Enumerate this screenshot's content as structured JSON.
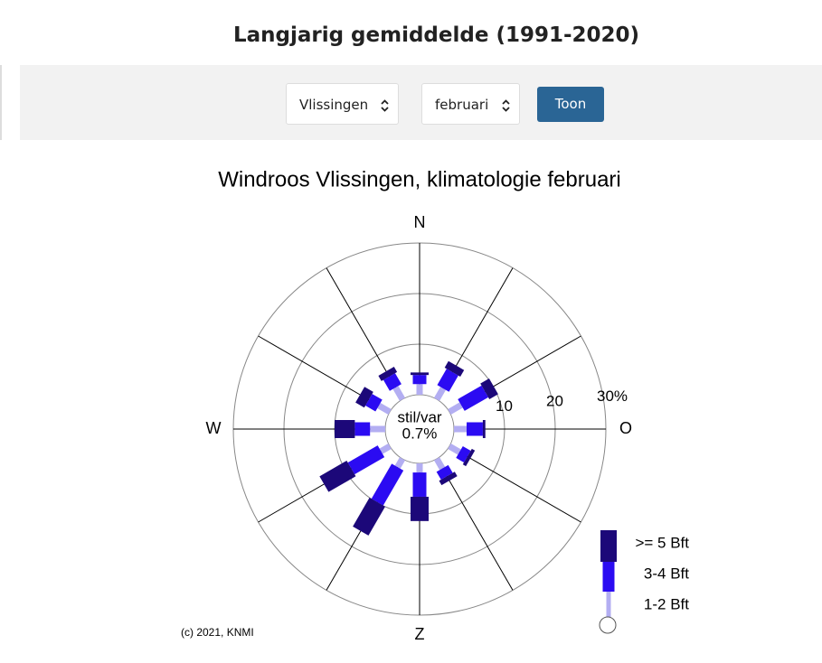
{
  "header": {
    "title": "Langjarig gemiddelde (1991-2020)"
  },
  "controls": {
    "station": "Vlissingen",
    "month": "februari",
    "button": "Toon"
  },
  "chart_data": {
    "type": "windrose",
    "title": "Windroos Vlissingen, klimatologie februari",
    "categories": [
      "N",
      null,
      null,
      "O",
      null,
      null,
      "Z",
      null,
      null,
      "W",
      null,
      null
    ],
    "series": [
      {
        "name": "1-2 Bft",
        "color": "#b3aef2",
        "values": [
          2.1,
          2.5,
          2.7,
          2.5,
          2.3,
          2.2,
          1.8,
          1.9,
          2.0,
          3.0,
          2.5,
          2.7
        ]
      },
      {
        "name": "3-4 Bft",
        "color": "#2b0bf2",
        "values": [
          1.8,
          3.7,
          5.4,
          3.2,
          1.8,
          1.8,
          4.8,
          8.0,
          6.8,
          3.0,
          2.3,
          2.5
        ]
      },
      {
        "name": ">= 5 Bft",
        "color": "#1c0879",
        "values": [
          0.5,
          1.5,
          2.0,
          0.5,
          0.7,
          1.0,
          4.8,
          6.6,
          6.2,
          4.0,
          2.0,
          1.2
        ]
      }
    ],
    "rlim": [
      0,
      30
    ],
    "rticks": [
      10,
      20,
      {
        "value": 30,
        "label": "30%"
      }
    ],
    "calm_label": "stil/var",
    "calm_value": 0.7,
    "calm_value_label": "0.7%",
    "credit": "(c) 2021, KNMI"
  }
}
